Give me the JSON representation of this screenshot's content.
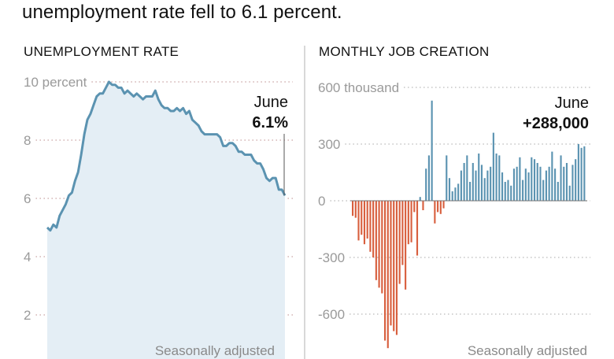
{
  "headline": "unemployment rate fell to 6.1 percent.",
  "chart_data": [
    {
      "type": "area",
      "title": "UNEMPLOYMENT RATE",
      "ylim": [
        1.5,
        10.5
      ],
      "yticks": [
        {
          "value": 10,
          "label": "10 percent"
        },
        {
          "value": 8,
          "label": "8"
        },
        {
          "value": 6,
          "label": "6"
        },
        {
          "value": 4,
          "label": "4"
        },
        {
          "value": 2,
          "label": "2"
        }
      ],
      "grid": true,
      "annotation": {
        "month": "June",
        "value": "6.1%"
      },
      "note": "Seasonally adjusted",
      "colors": {
        "line": "#5b93b1",
        "fill": "#e4eef5",
        "grid": "#c9a3a3"
      },
      "values": [
        5.0,
        4.9,
        5.1,
        5.0,
        5.4,
        5.6,
        5.8,
        6.1,
        6.2,
        6.6,
        6.9,
        7.5,
        8.2,
        8.7,
        8.9,
        9.2,
        9.5,
        9.6,
        9.6,
        9.8,
        10.0,
        9.9,
        9.9,
        9.8,
        9.8,
        9.6,
        9.7,
        9.6,
        9.5,
        9.6,
        9.5,
        9.4,
        9.5,
        9.5,
        9.5,
        9.7,
        9.4,
        9.2,
        9.1,
        9.1,
        9.0,
        9.0,
        9.1,
        9.0,
        9.1,
        8.9,
        9.0,
        8.7,
        8.6,
        8.5,
        8.3,
        8.2,
        8.2,
        8.2,
        8.2,
        8.2,
        8.1,
        7.8,
        7.8,
        7.9,
        7.9,
        7.8,
        7.6,
        7.6,
        7.5,
        7.5,
        7.5,
        7.3,
        7.2,
        7.2,
        7.0,
        6.7,
        6.6,
        6.7,
        6.7,
        6.3,
        6.3,
        6.1
      ]
    },
    {
      "type": "bar",
      "title": "MONTHLY JOB CREATION",
      "ylim": [
        -760,
        640
      ],
      "yticks": [
        {
          "value": 600,
          "label": "600 thousand"
        },
        {
          "value": 300,
          "label": "300"
        },
        {
          "value": 0,
          "label": "0"
        },
        {
          "value": -300,
          "label": "-300"
        },
        {
          "value": -600,
          "label": "-600"
        }
      ],
      "grid": true,
      "annotation": {
        "month": "June",
        "value": "+288,000"
      },
      "note": "Seasonally adjusted",
      "colors": {
        "positive": "#5b93b1",
        "negative": "#d85f3e",
        "grid": "#b9b9b9"
      },
      "values": [
        -80,
        -90,
        -210,
        -180,
        -230,
        -200,
        -270,
        -300,
        -420,
        -460,
        -490,
        -740,
        -780,
        -660,
        -690,
        -710,
        -440,
        -340,
        -470,
        -230,
        -220,
        -60,
        -290,
        20,
        -50,
        170,
        240,
        530,
        -120,
        -60,
        -70,
        -40,
        240,
        120,
        50,
        70,
        90,
        160,
        200,
        240,
        100,
        200,
        160,
        250,
        190,
        120,
        160,
        180,
        360,
        250,
        240,
        150,
        100,
        110,
        80,
        170,
        180,
        230,
        110,
        170,
        150,
        230,
        220,
        200,
        180,
        110,
        160,
        180,
        260,
        170,
        100,
        240,
        180,
        200,
        80,
        190,
        220,
        300,
        280,
        288
      ]
    }
  ]
}
